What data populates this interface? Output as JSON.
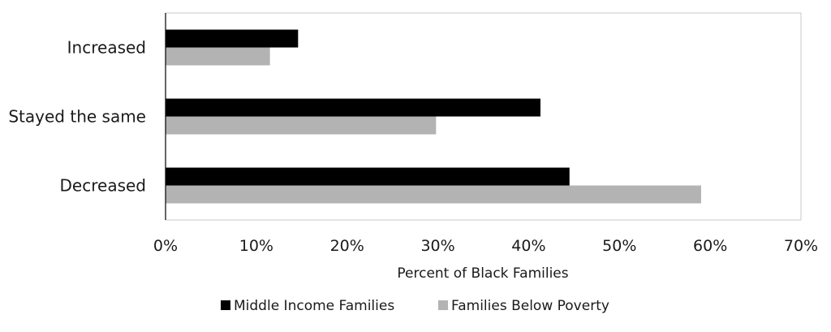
{
  "chart_data": {
    "type": "bar",
    "orientation": "horizontal",
    "categories": [
      "Increased",
      "Stayed the same",
      "Decreased"
    ],
    "series": [
      {
        "name": "Middle Income Families",
        "color": "#000000",
        "values": [
          14.6,
          41.3,
          44.5
        ]
      },
      {
        "name": "Families Below Poverty",
        "color": "#b3b3b3",
        "values": [
          11.5,
          29.8,
          59.0
        ]
      }
    ],
    "xlabel": "Percent of Black Families",
    "ylabel": "",
    "xlim": [
      0,
      70
    ],
    "x_ticks": [
      "0%",
      "10%",
      "20%",
      "30%",
      "40%",
      "50%",
      "60%",
      "70%"
    ],
    "grid": false,
    "legend_position": "bottom"
  }
}
